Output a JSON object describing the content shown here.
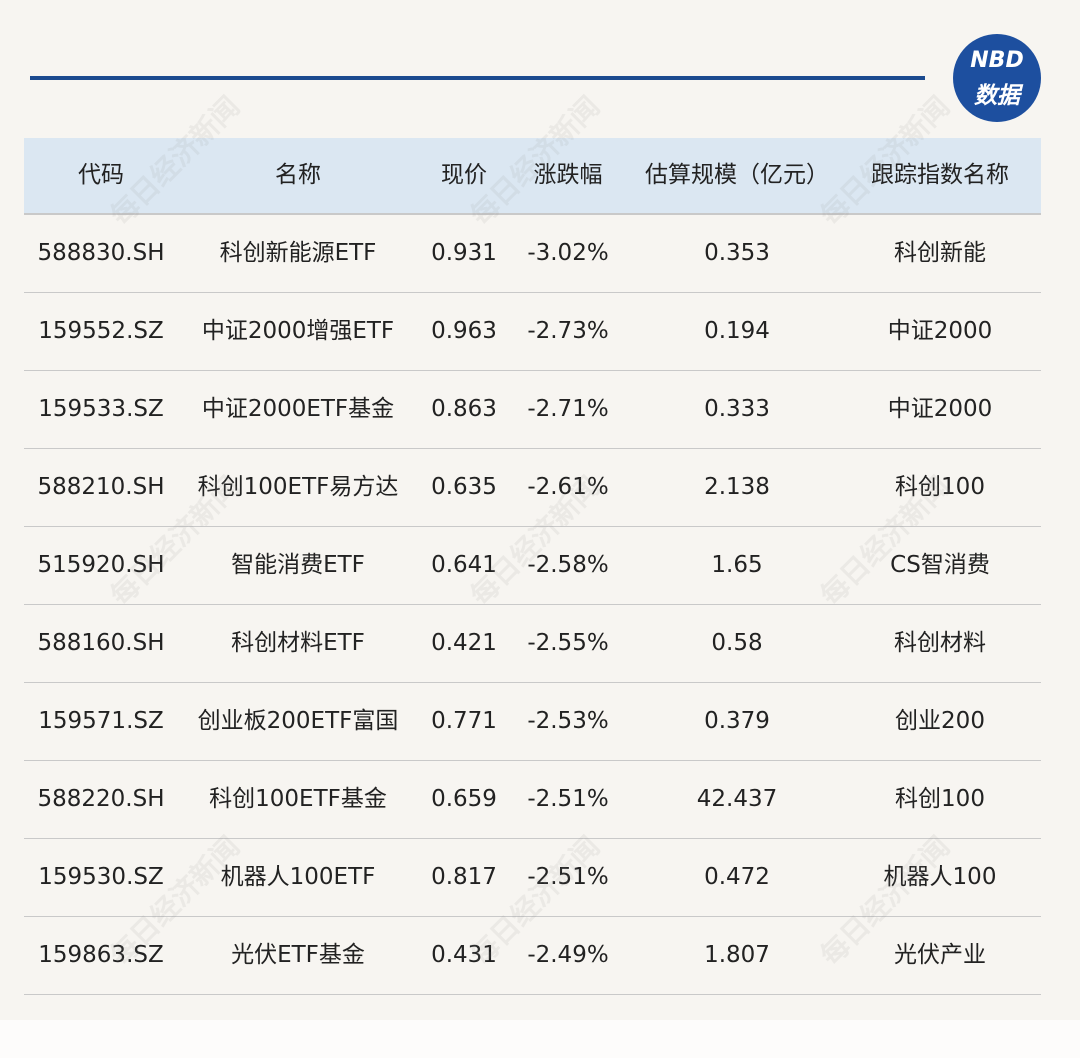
{
  "logo": {
    "line1": "NBD",
    "line2": "数据"
  },
  "watermark": "每日经济新闻",
  "table": {
    "columns": [
      "代码",
      "名称",
      "现价",
      "涨跌幅",
      "估算规模（亿元）",
      "跟踪指数名称"
    ],
    "rows": [
      [
        "588830.SH",
        "科创新能源ETF",
        "0.931",
        "-3.02%",
        "0.353",
        "科创新能"
      ],
      [
        "159552.SZ",
        "中证2000增强ETF",
        "0.963",
        "-2.73%",
        "0.194",
        "中证2000"
      ],
      [
        "159533.SZ",
        "中证2000ETF基金",
        "0.863",
        "-2.71%",
        "0.333",
        "中证2000"
      ],
      [
        "588210.SH",
        "科创100ETF易方达",
        "0.635",
        "-2.61%",
        "2.138",
        "科创100"
      ],
      [
        "515920.SH",
        "智能消费ETF",
        "0.641",
        "-2.58%",
        "1.65",
        "CS智消费"
      ],
      [
        "588160.SH",
        "科创材料ETF",
        "0.421",
        "-2.55%",
        "0.58",
        "科创材料"
      ],
      [
        "159571.SZ",
        "创业板200ETF富国",
        "0.771",
        "-2.53%",
        "0.379",
        "创业200"
      ],
      [
        "588220.SH",
        "科创100ETF基金",
        "0.659",
        "-2.51%",
        "42.437",
        "科创100"
      ],
      [
        "159530.SZ",
        "机器人100ETF",
        "0.817",
        "-2.51%",
        "0.472",
        "机器人100"
      ],
      [
        "159863.SZ",
        "光伏ETF基金",
        "0.431",
        "-2.49%",
        "1.807",
        "光伏产业"
      ]
    ]
  }
}
